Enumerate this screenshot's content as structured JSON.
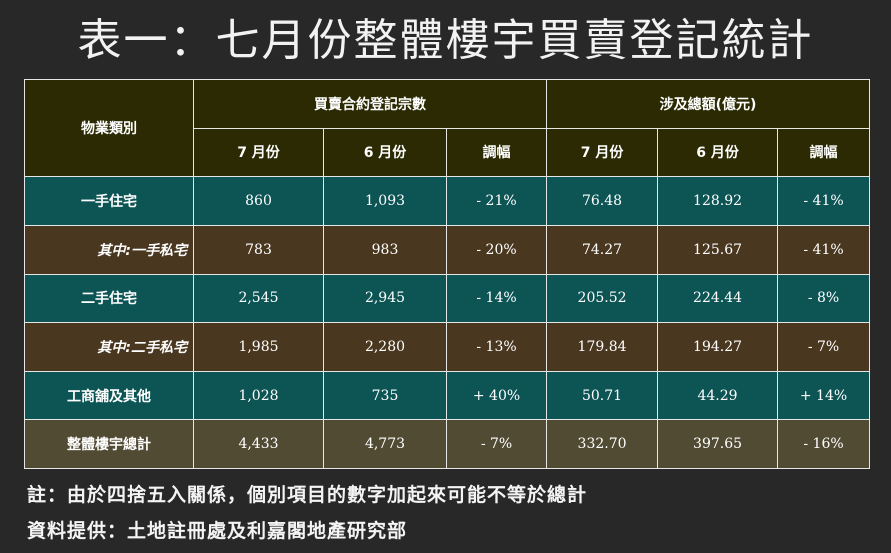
{
  "title": "表一：七月份整體樓宇買賣登記統計",
  "table": {
    "col_type": "物業類別",
    "group1": "買賣合約登記宗數",
    "group2": "涉及總額(億元)",
    "sub_headers": [
      "7 月份",
      "6 月份",
      "調幅",
      "7 月份",
      "6 月份",
      "調幅"
    ],
    "rows": [
      {
        "label": "一手住宅",
        "cells": [
          "860",
          "1,093",
          "- 21%",
          "76.48",
          "128.92",
          "- 41%"
        ]
      },
      {
        "label": "其中:一手私宅",
        "cells": [
          "783",
          "983",
          "- 20%",
          "74.27",
          "125.67",
          "- 41%"
        ]
      },
      {
        "label": "二手住宅",
        "cells": [
          "2,545",
          "2,945",
          "- 14%",
          "205.52",
          "224.44",
          "- 8%"
        ]
      },
      {
        "label": "其中:二手私宅",
        "cells": [
          "1,985",
          "2,280",
          "- 13%",
          "179.84",
          "194.27",
          "- 7%"
        ]
      },
      {
        "label": "工商舖及其他",
        "cells": [
          "1,028",
          "735",
          "+ 40%",
          "50.71",
          "44.29",
          "+ 14%"
        ]
      },
      {
        "label": "整體樓宇總計",
        "cells": [
          "4,433",
          "4,773",
          "- 7%",
          "332.70",
          "397.65",
          "- 16%"
        ]
      }
    ]
  },
  "notes": {
    "note1": "註：由於四捨五入關係，個別項目的數字加起來可能不等於總計",
    "note2": "資料提供：土地註冊處及利嘉閣地產研究部"
  },
  "colors": {
    "header": "#2b2a02",
    "teal_row": "#0d5455",
    "brown_row": "#4a3720",
    "total_row": "#524b34"
  }
}
